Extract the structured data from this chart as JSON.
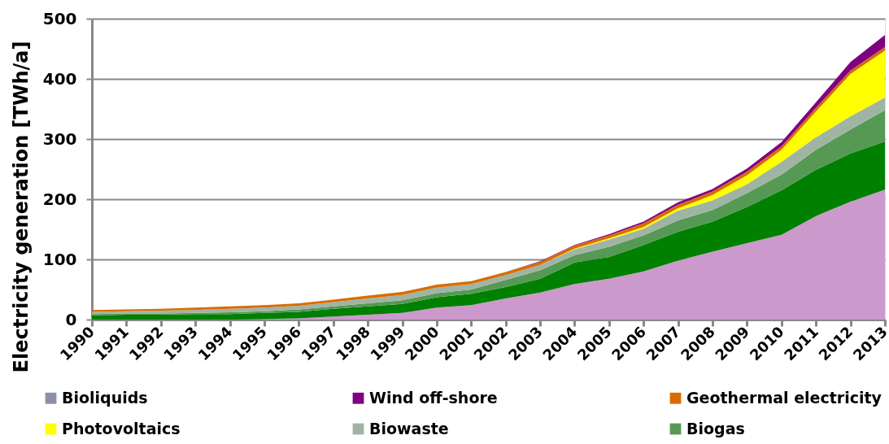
{
  "chart_data": {
    "type": "area",
    "stacked": true,
    "ylabel": "Electricity generation [TWh/a]",
    "categories": [
      "1990",
      "1991",
      "1992",
      "1993",
      "1994",
      "1995",
      "1996",
      "1997",
      "1998",
      "1999",
      "2000",
      "2001",
      "2002",
      "2003",
      "2004",
      "2005",
      "2006",
      "2007",
      "2008",
      "2009",
      "2010",
      "2011",
      "2012",
      "2013"
    ],
    "series": [
      {
        "color": "#cc99cc",
        "values": [
          0,
          0,
          0,
          0,
          0,
          1,
          2,
          5,
          8,
          11,
          20,
          24,
          35,
          45,
          59,
          68,
          80,
          98,
          113,
          127,
          141,
          172,
          196,
          216
        ]
      },
      {
        "color": "#008000",
        "values": [
          7,
          8,
          8,
          9,
          9,
          10,
          11,
          13,
          14,
          15,
          17,
          19,
          19,
          23,
          36,
          36,
          44,
          48,
          50,
          60,
          74,
          77,
          80,
          80
        ]
      },
      {
        "name": "Biogas",
        "color": "#559955",
        "values": [
          2,
          2,
          2,
          2,
          3,
          3,
          4,
          4,
          5,
          6,
          7,
          7,
          12,
          14,
          12,
          17,
          16,
          19,
          19,
          23,
          26,
          33,
          40,
          52
        ]
      },
      {
        "name": "Biowaste",
        "color": "#a0b4a4",
        "values": [
          4,
          4,
          5,
          5,
          6,
          6,
          6,
          7,
          8,
          9,
          9,
          9,
          8,
          9,
          10,
          12,
          11,
          16,
          16,
          15,
          21,
          21,
          22,
          21
        ]
      },
      {
        "name": "Photovoltaics",
        "color": "#ffff00",
        "values": [
          0,
          0,
          0,
          0,
          0,
          0,
          0,
          0,
          0,
          0,
          0,
          0,
          0,
          0,
          1,
          2,
          3,
          4,
          9,
          15,
          20,
          43,
          70,
          78
        ]
      },
      {
        "name": "Geothermal electricity",
        "color": "#d96c00",
        "values": [
          3,
          3,
          3,
          4,
          4,
          4,
          4,
          4,
          5,
          5,
          5,
          5,
          5,
          5,
          5,
          5,
          6,
          6,
          6,
          6,
          6,
          6,
          6,
          6
        ]
      },
      {
        "name": "Wind off-shore",
        "color": "#800080",
        "values": [
          0,
          0,
          0,
          0,
          0,
          0,
          0,
          0,
          0,
          0,
          0,
          0,
          0,
          1,
          1,
          2,
          3,
          4,
          4,
          5,
          7,
          9,
          14,
          20
        ]
      },
      {
        "name": "Bioliquids",
        "color": "#8c8fa8",
        "values": [
          null,
          null,
          null,
          null,
          null,
          null,
          null,
          null,
          null,
          null,
          null,
          null,
          null,
          null,
          null,
          null,
          null,
          null,
          null,
          null,
          null,
          null,
          null,
          null
        ]
      }
    ],
    "ylim": [
      0,
      500
    ],
    "yticks": [
      0,
      100,
      200,
      300,
      400,
      500
    ],
    "grid": "y",
    "legend": "bottom"
  }
}
